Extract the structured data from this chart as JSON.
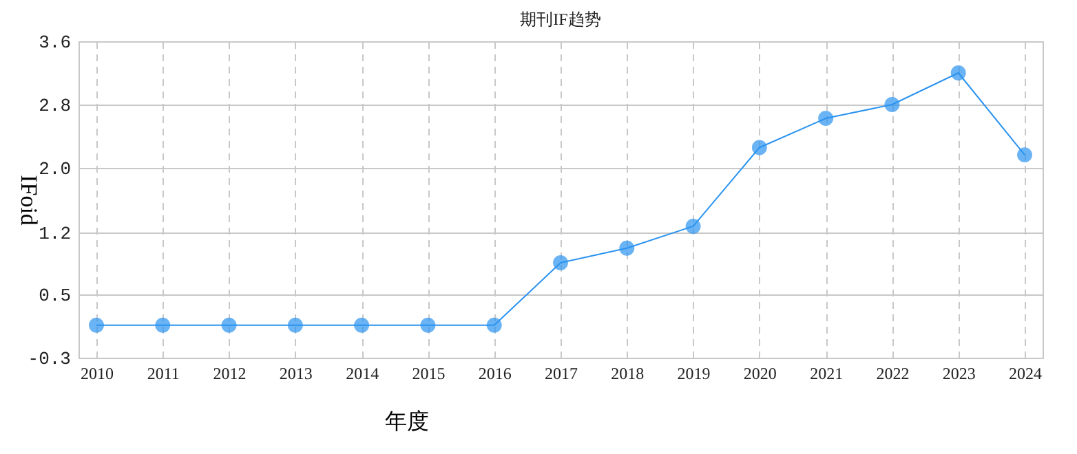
{
  "chart_data": {
    "type": "line",
    "title": "期刊IF趋势",
    "xlabel": "年度",
    "ylabel": "IFoid",
    "categories": [
      "2010",
      "2011",
      "2012",
      "2013",
      "2014",
      "2015",
      "2016",
      "2017",
      "2018",
      "2019",
      "2020",
      "2021",
      "2022",
      "2023",
      "2024"
    ],
    "series": [
      {
        "color": "#2b93f0",
        "values": [
          0.1,
          0.1,
          0.1,
          0.1,
          0.1,
          0.1,
          0.1,
          0.87,
          1.05,
          1.32,
          2.29,
          2.65,
          2.82,
          3.21,
          2.2
        ]
      }
    ],
    "ylim": [
      -0.3,
      3.6
    ],
    "yticks": [
      {
        "value": -0.3,
        "label": "-0.3"
      },
      {
        "value": 0.48,
        "label": "0.5"
      },
      {
        "value": 1.24,
        "label": "1.2"
      },
      {
        "value": 2.04,
        "label": "2.0"
      },
      {
        "value": 2.82,
        "label": "2.8"
      },
      {
        "value": 3.6,
        "label": "3.6"
      }
    ],
    "grid": true,
    "marker": "circle",
    "line_style": "solid"
  }
}
